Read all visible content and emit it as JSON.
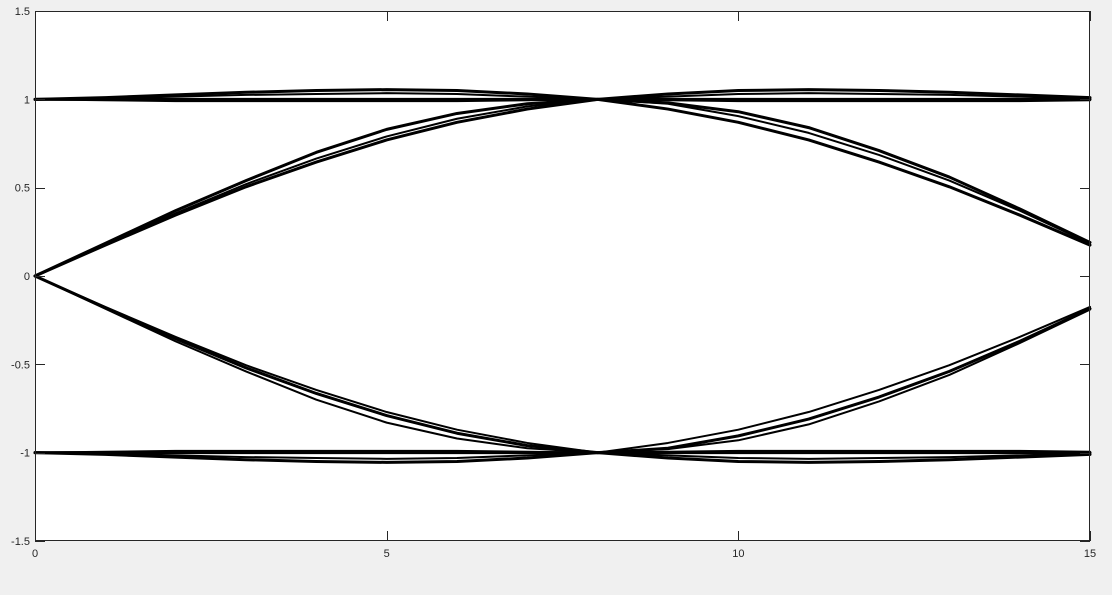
{
  "chart_data": {
    "type": "line",
    "title": "",
    "xlabel": "",
    "ylabel": "",
    "xlim": [
      0,
      15
    ],
    "ylim": [
      -1.5,
      1.5
    ],
    "xticks": [
      0,
      5,
      10,
      15
    ],
    "yticks": [
      -1.5,
      -1,
      -0.5,
      0,
      0.5,
      1,
      1.5
    ],
    "xtick_labels": [
      "0",
      "5",
      "10",
      "15"
    ],
    "ytick_labels": [
      "-1.5",
      "-1",
      "-0.5",
      "0",
      "0.5",
      "1",
      "1.5"
    ],
    "grid": false,
    "line_color": "#000000",
    "background_color": "#ffffff",
    "figure_color": "#f0f0f0",
    "x": [
      0,
      1,
      2,
      3,
      4,
      5,
      6,
      7,
      8,
      9,
      10,
      11,
      12,
      13,
      14,
      15
    ],
    "series": [
      {
        "values": [
          1,
          1.01,
          1.025,
          1.04,
          1.05,
          1.055,
          1.05,
          1.03,
          1,
          1.03,
          1.05,
          1.055,
          1.05,
          1.04,
          1.025,
          1.01
        ]
      },
      {
        "values": [
          1,
          1.005,
          1.015,
          1.025,
          1.03,
          1.035,
          1.03,
          1.015,
          1,
          1.015,
          1.03,
          1.035,
          1.03,
          1.025,
          1.015,
          1.005
        ]
      },
      {
        "values": [
          1,
          1.0,
          1.0,
          1.0,
          1.0,
          1.0,
          1.0,
          1.0,
          1,
          1.0,
          1.0,
          1.0,
          1.0,
          1.0,
          1.0,
          1.0
        ]
      },
      {
        "values": [
          1,
          0.995,
          0.99,
          0.99,
          0.99,
          0.99,
          0.99,
          0.995,
          1,
          0.995,
          0.99,
          0.99,
          0.99,
          0.99,
          0.99,
          0.995
        ]
      },
      {
        "values": [
          0,
          0.185,
          0.37,
          0.54,
          0.7,
          0.83,
          0.92,
          0.975,
          1,
          0.98,
          0.93,
          0.84,
          0.71,
          0.56,
          0.38,
          0.19
        ]
      },
      {
        "values": [
          0,
          0.18,
          0.355,
          0.52,
          0.665,
          0.79,
          0.89,
          0.96,
          1,
          0.975,
          0.905,
          0.81,
          0.685,
          0.54,
          0.37,
          0.185
        ]
      },
      {
        "values": [
          0,
          0.175,
          0.345,
          0.505,
          0.645,
          0.77,
          0.87,
          0.945,
          1,
          0.945,
          0.87,
          0.77,
          0.645,
          0.505,
          0.345,
          0.175
        ]
      },
      {
        "values": [
          0,
          -0.185,
          -0.37,
          -0.54,
          -0.7,
          -0.83,
          -0.92,
          -0.975,
          -1,
          -0.98,
          -0.93,
          -0.84,
          -0.71,
          -0.56,
          -0.38,
          -0.19
        ]
      },
      {
        "values": [
          0,
          -0.18,
          -0.355,
          -0.52,
          -0.665,
          -0.79,
          -0.89,
          -0.96,
          -1,
          -0.975,
          -0.905,
          -0.81,
          -0.685,
          -0.54,
          -0.37,
          -0.185
        ]
      },
      {
        "values": [
          0,
          -0.175,
          -0.345,
          -0.505,
          -0.645,
          -0.77,
          -0.87,
          -0.945,
          -1,
          -0.945,
          -0.87,
          -0.77,
          -0.645,
          -0.505,
          -0.345,
          -0.175
        ]
      },
      {
        "values": [
          -1,
          -1.01,
          -1.025,
          -1.04,
          -1.05,
          -1.055,
          -1.05,
          -1.03,
          -1,
          -1.03,
          -1.05,
          -1.055,
          -1.05,
          -1.04,
          -1.025,
          -1.01
        ]
      },
      {
        "values": [
          -1,
          -1.005,
          -1.015,
          -1.025,
          -1.03,
          -1.035,
          -1.03,
          -1.015,
          -1,
          -1.015,
          -1.03,
          -1.035,
          -1.03,
          -1.025,
          -1.015,
          -1.005
        ]
      },
      {
        "values": [
          -1,
          -1.0,
          -1.0,
          -1.0,
          -1.0,
          -1.0,
          -1.0,
          -1.0,
          -1,
          -1.0,
          -1.0,
          -1.0,
          -1.0,
          -1.0,
          -1.0,
          -1.0
        ]
      },
      {
        "values": [
          -1,
          -0.995,
          -0.99,
          -0.99,
          -0.99,
          -0.99,
          -0.99,
          -0.995,
          -1,
          -0.995,
          -0.99,
          -0.99,
          -0.99,
          -0.99,
          -0.99,
          -0.995
        ]
      }
    ]
  }
}
